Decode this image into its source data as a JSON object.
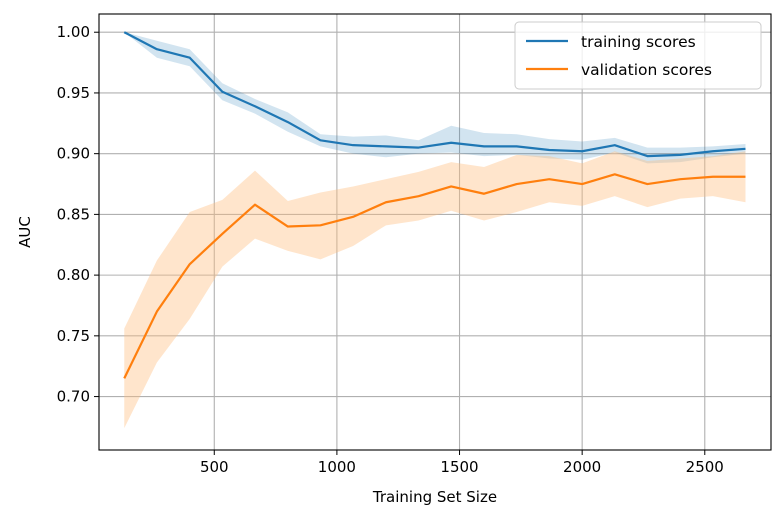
{
  "chart_data": {
    "type": "line",
    "title": "",
    "xlabel": "Training Set Size",
    "ylabel": "AUC",
    "xlim": [
      30,
      2770
    ],
    "ylim": [
      0.656,
      1.015
    ],
    "xticks": [
      500,
      1000,
      1500,
      2000,
      2500
    ],
    "xtick_labels": [
      "500",
      "1000",
      "1500",
      "2000",
      "2500"
    ],
    "yticks": [
      0.7,
      0.75,
      0.8,
      0.85,
      0.9,
      0.95,
      1.0
    ],
    "ytick_labels": [
      "0.70",
      "0.75",
      "0.80",
      "0.85",
      "0.90",
      "0.95",
      "1.00"
    ],
    "grid": true,
    "legend_position": "top-right",
    "x": [
      133,
      266,
      400,
      533,
      666,
      800,
      933,
      1066,
      1200,
      1333,
      1466,
      1600,
      1733,
      1866,
      2000,
      2133,
      2266,
      2400,
      2533,
      2666
    ],
    "series": [
      {
        "name": "training scores",
        "color": "#1f77b4",
        "band_color": "#1f77b4",
        "values": [
          1.0,
          0.986,
          0.979,
          0.951,
          0.939,
          0.926,
          0.911,
          0.907,
          0.906,
          0.905,
          0.909,
          0.906,
          0.906,
          0.903,
          0.902,
          0.907,
          0.898,
          0.899,
          0.902,
          0.904
        ],
        "lower": [
          1.0,
          0.979,
          0.972,
          0.944,
          0.933,
          0.918,
          0.906,
          0.9,
          0.897,
          0.9,
          0.901,
          0.898,
          0.899,
          0.896,
          0.895,
          0.901,
          0.892,
          0.893,
          0.897,
          0.9
        ],
        "upper": [
          1.0,
          0.993,
          0.986,
          0.958,
          0.945,
          0.934,
          0.916,
          0.914,
          0.915,
          0.911,
          0.923,
          0.917,
          0.916,
          0.912,
          0.91,
          0.913,
          0.905,
          0.905,
          0.906,
          0.908
        ]
      },
      {
        "name": "validation scores",
        "color": "#ff7f0e",
        "band_color": "#ffbf80",
        "values": [
          0.715,
          0.77,
          0.809,
          0.834,
          0.858,
          0.84,
          0.841,
          0.848,
          0.86,
          0.865,
          0.873,
          0.867,
          0.875,
          0.879,
          0.875,
          0.883,
          0.875,
          0.879,
          0.881,
          0.881
        ],
        "lower": [
          0.674,
          0.728,
          0.764,
          0.807,
          0.83,
          0.82,
          0.813,
          0.824,
          0.841,
          0.845,
          0.853,
          0.845,
          0.852,
          0.86,
          0.857,
          0.865,
          0.856,
          0.863,
          0.865,
          0.86
        ],
        "upper": [
          0.756,
          0.812,
          0.852,
          0.862,
          0.886,
          0.861,
          0.868,
          0.873,
          0.879,
          0.885,
          0.893,
          0.889,
          0.899,
          0.898,
          0.892,
          0.902,
          0.894,
          0.896,
          0.898,
          0.902
        ]
      }
    ]
  }
}
